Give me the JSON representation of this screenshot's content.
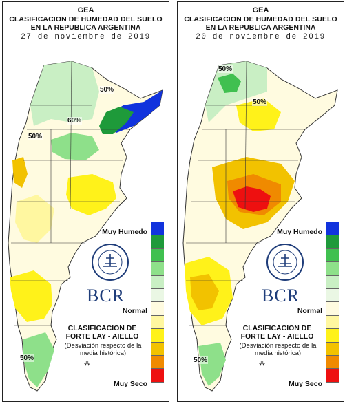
{
  "left": {
    "org": "GEA",
    "title1": "CLASIFICACION DE HUMEDAD DEL SUELO",
    "title2": "EN LA REPUBLICA ARGENTINA",
    "date": "27 de noviembre de 2019",
    "isolines": [
      "50%",
      "60%",
      "50%",
      "50%"
    ],
    "legend": {
      "top_label": "Muy Humedo",
      "normal_label": "Normal",
      "bottom_label": "Muy Seco"
    },
    "brand": "BCR",
    "method": "CLASIFICACION DE FORTE LAY - AIELLO",
    "method_note": "(Desviación respecto de la media histórica)"
  },
  "right": {
    "org": "GEA",
    "title1": "CLASIFICACION DE HUMEDAD DEL SUELO",
    "title2": "EN LA REPUBLICA ARGENTINA",
    "date": "20 de noviembre de 2019",
    "isolines": [
      "50%",
      "50%",
      "50%"
    ],
    "legend": {
      "top_label": "Muy Humedo",
      "normal_label": "Normal",
      "bottom_label": "Muy Seco"
    },
    "brand": "BCR",
    "method": "CLASIFICACION DE FORTE LAY - AIELLO",
    "method_note": "(Desviación respecto de la media histórica)"
  },
  "legend_colors": [
    "#1133dd",
    "#1e9a3a",
    "#40c050",
    "#8ee08a",
    "#c9efc4",
    "#eaf7e4",
    "#fffbe0",
    "#fff7a0",
    "#fff21a",
    "#f2c200",
    "#f08a00",
    "#ee1010"
  ],
  "logo_ring_text": "BOLSA DE COMERCIO DE ROSARIO"
}
